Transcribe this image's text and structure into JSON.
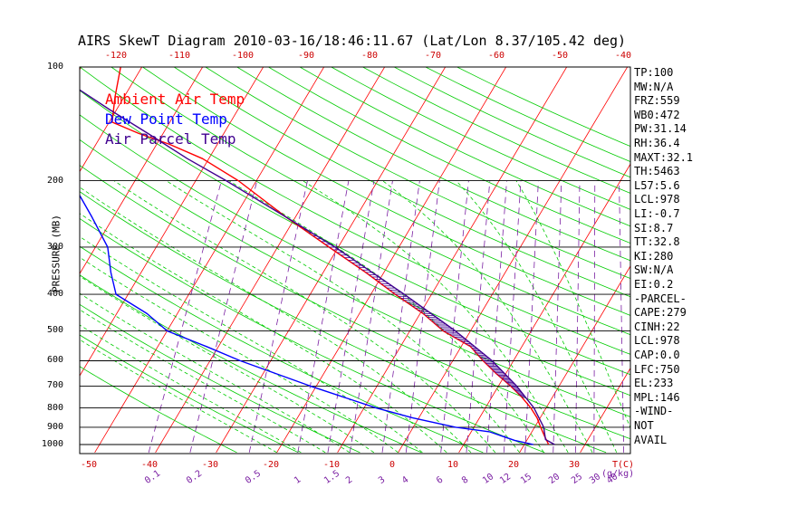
{
  "chart_data": {
    "type": "skewt",
    "title": "AIRS SkewT Diagram 2010-03-16/18:46:11.67 (Lat/Lon 8.37/105.42 deg)",
    "ylabel": "PRESSURE (MB)",
    "xlabel_unit": "T(C)",
    "mixing_unit": "(g/kg)",
    "legend": [
      {
        "label": "Ambient Air Temp",
        "color": "#ff0000"
      },
      {
        "label": "Dew Point Temp",
        "color": "#0000ff"
      },
      {
        "label": "Air Parcel Temp",
        "color": "#400090"
      }
    ],
    "pressure_ticks": [
      100,
      200,
      300,
      400,
      500,
      600,
      700,
      800,
      900,
      1000
    ],
    "top_temp_ticks": [
      -120,
      -110,
      -100,
      -90,
      -80,
      -70,
      -60,
      -50,
      -40
    ],
    "bottom_temp_ticks": [
      -50,
      -40,
      -30,
      -20,
      -10,
      0,
      10,
      20,
      30
    ],
    "mixing_ratio_labels": [
      "0.1",
      "0.2",
      "0.5",
      "1",
      "1.5",
      "2",
      "3",
      "4",
      "6",
      "8",
      "10",
      "12",
      "15",
      "20",
      "25",
      "30",
      "40"
    ],
    "ambient_temp_profile": [
      {
        "p": 1000,
        "t": 24.0
      },
      {
        "p": 950,
        "t": 22.5
      },
      {
        "p": 900,
        "t": 21.0
      },
      {
        "p": 850,
        "t": 19.5
      },
      {
        "p": 800,
        "t": 17.5
      },
      {
        "p": 750,
        "t": 15.0
      },
      {
        "p": 700,
        "t": 12.0
      },
      {
        "p": 650,
        "t": 8.5
      },
      {
        "p": 600,
        "t": 5.0
      },
      {
        "p": 550,
        "t": 1.5
      },
      {
        "p": 500,
        "t": -4.5
      },
      {
        "p": 450,
        "t": -9.5
      },
      {
        "p": 400,
        "t": -16.0
      },
      {
        "p": 350,
        "t": -23.0
      },
      {
        "p": 300,
        "t": -31.5
      },
      {
        "p": 250,
        "t": -41.5
      },
      {
        "p": 200,
        "t": -53.0
      },
      {
        "p": 175,
        "t": -61.0
      },
      {
        "p": 160,
        "t": -68.0
      },
      {
        "p": 150,
        "t": -74.0
      },
      {
        "p": 140,
        "t": -79.5
      },
      {
        "p": 120,
        "t": -81.5
      },
      {
        "p": 100,
        "t": -83.5
      }
    ],
    "dewpoint_profile": [
      {
        "p": 1000,
        "t": 21.5
      },
      {
        "p": 975,
        "t": 18.0
      },
      {
        "p": 950,
        "t": 15.5
      },
      {
        "p": 925,
        "t": 13.0
      },
      {
        "p": 900,
        "t": 7.0
      },
      {
        "p": 850,
        "t": -1.0
      },
      {
        "p": 800,
        "t": -8.0
      },
      {
        "p": 700,
        "t": -21.0
      },
      {
        "p": 600,
        "t": -35.0
      },
      {
        "p": 550,
        "t": -42.0
      },
      {
        "p": 500,
        "t": -50.0
      },
      {
        "p": 450,
        "t": -55.0
      },
      {
        "p": 400,
        "t": -62.0
      },
      {
        "p": 350,
        "t": -65.0
      },
      {
        "p": 300,
        "t": -68.0
      },
      {
        "p": 250,
        "t": -73.5
      },
      {
        "p": 200,
        "t": -80.5
      },
      {
        "p": 160,
        "t": -85.5
      },
      {
        "p": 140,
        "t": -87.5
      },
      {
        "p": 120,
        "t": -90.5
      },
      {
        "p": 100,
        "t": -95.5
      }
    ],
    "parcel_profile": [
      {
        "p": 1000,
        "t": 25.0
      },
      {
        "p": 970,
        "t": 23.0
      },
      {
        "p": 900,
        "t": 21.5
      },
      {
        "p": 800,
        "t": 18.0
      },
      {
        "p": 700,
        "t": 13.0
      },
      {
        "p": 600,
        "t": 6.5
      },
      {
        "p": 500,
        "t": -2.5
      },
      {
        "p": 400,
        "t": -14.5
      },
      {
        "p": 300,
        "t": -30.5
      },
      {
        "p": 250,
        "t": -41.5
      },
      {
        "p": 200,
        "t": -55.0
      },
      {
        "p": 175,
        "t": -63.5
      },
      {
        "p": 150,
        "t": -72.5
      },
      {
        "p": 130,
        "t": -81.0
      },
      {
        "p": 115,
        "t": -88.0
      },
      {
        "p": 100,
        "t": -96.0
      }
    ],
    "indices": [
      "TP:100",
      "MW:N/A",
      "FRZ:559",
      "WB0:472",
      "PW:31.14",
      "RH:36.4",
      "MAXT:32.1",
      "TH:5463",
      "L57:5.6",
      "LCL:978",
      "LI:-0.7",
      "SI:8.7",
      "TT:32.8",
      "KI:280",
      "SW:N/A",
      "EI:0.2",
      "-PARCEL-",
      "CAPE:279",
      "CINH:22",
      "LCL:978",
      "CAP:0.0",
      "LFC:750",
      "EL:233",
      "MPL:146",
      "-WIND-",
      " NOT",
      " AVAIL"
    ],
    "colors": {
      "isotherm": "#ff0000",
      "dry_adiabat": "#00cc00",
      "moist_adiabat": "#00cc00",
      "mixing_ratio": "#7a1fa2",
      "isobar": "#000000",
      "ambient": "#ff0000",
      "dewpoint": "#0000ff",
      "parcel": "#400090"
    }
  }
}
